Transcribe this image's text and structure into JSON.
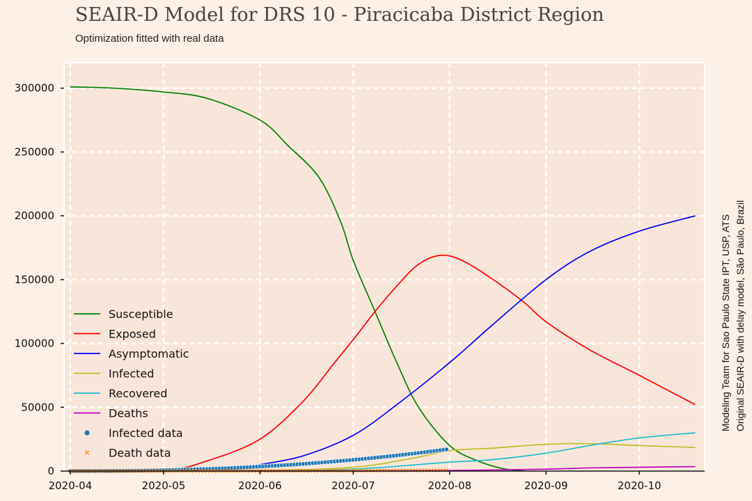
{
  "title": "SEAIR-D Model for DRS 10 - Piracicaba District Region",
  "subtitle": "Optimization fitted with real data",
  "side_note": {
    "line1": "Modeling Team for Sao Paulo State IPT, USP, ATS",
    "line2": "Original SEAIR-D with delay model, São Paulo, Brazil"
  },
  "colors": {
    "background": "#fdf0e6",
    "plot_bg": "#f9e6da",
    "grid": "#ffffff"
  },
  "chart_data": {
    "type": "line",
    "grid": true,
    "legend_position": "center-left",
    "xlim": [
      "2020-03-30",
      "2020-10-22"
    ],
    "ylim": [
      0,
      320000
    ],
    "x_ticks": [
      {
        "date": "2020-04-01",
        "label": "2020-04"
      },
      {
        "date": "2020-05-01",
        "label": "2020-05"
      },
      {
        "date": "2020-06-01",
        "label": "2020-06"
      },
      {
        "date": "2020-07-01",
        "label": "2020-07"
      },
      {
        "date": "2020-08-01",
        "label": "2020-08"
      },
      {
        "date": "2020-09-01",
        "label": "2020-09"
      },
      {
        "date": "2020-10-01",
        "label": "2020-10"
      }
    ],
    "y_ticks": [
      {
        "value": 0,
        "label": "0"
      },
      {
        "value": 50000,
        "label": "50000"
      },
      {
        "value": 100000,
        "label": "100000"
      },
      {
        "value": 150000,
        "label": "150000"
      },
      {
        "value": 200000,
        "label": "200000"
      },
      {
        "value": 250000,
        "label": "250000"
      },
      {
        "value": 300000,
        "label": "300000"
      }
    ],
    "series": [
      {
        "name": "Susceptible",
        "kind": "line",
        "color": "#008000",
        "x": [
          "2020-04-01",
          "2020-04-15",
          "2020-05-01",
          "2020-05-15",
          "2020-06-01",
          "2020-06-10",
          "2020-06-20",
          "2020-06-27",
          "2020-07-01",
          "2020-07-08",
          "2020-07-15",
          "2020-07-22",
          "2020-08-01",
          "2020-08-10",
          "2020-08-18",
          "2020-08-25"
        ],
        "y": [
          301000,
          300000,
          297000,
          292000,
          275000,
          255000,
          230000,
          195000,
          165000,
          125000,
          85000,
          50000,
          20000,
          8000,
          2000,
          0
        ]
      },
      {
        "name": "Exposed",
        "kind": "line",
        "color": "#ff0000",
        "x": [
          "2020-04-01",
          "2020-05-01",
          "2020-05-15",
          "2020-06-01",
          "2020-06-15",
          "2020-06-25",
          "2020-07-01",
          "2020-07-08",
          "2020-07-15",
          "2020-07-22",
          "2020-07-29",
          "2020-08-05",
          "2020-08-15",
          "2020-08-25",
          "2020-09-01",
          "2020-09-15",
          "2020-10-01",
          "2020-10-19"
        ],
        "y": [
          0,
          500,
          8000,
          25000,
          55000,
          85000,
          103000,
          125000,
          145000,
          162000,
          169000,
          165000,
          150000,
          132000,
          117000,
          95000,
          75000,
          52000
        ]
      },
      {
        "name": "Asymptomatic",
        "kind": "line",
        "color": "#0000ff",
        "x": [
          "2020-04-01",
          "2020-05-01",
          "2020-05-25",
          "2020-06-01",
          "2020-06-15",
          "2020-07-01",
          "2020-07-15",
          "2020-08-01",
          "2020-08-15",
          "2020-09-01",
          "2020-09-15",
          "2020-10-01",
          "2020-10-19"
        ],
        "y": [
          0,
          500,
          2000,
          5000,
          12000,
          28000,
          52000,
          85000,
          115000,
          150000,
          172000,
          188000,
          200000
        ]
      },
      {
        "name": "Infected",
        "kind": "line",
        "color": "#bcbd22",
        "x": [
          "2020-04-01",
          "2020-06-01",
          "2020-07-01",
          "2020-07-20",
          "2020-08-01",
          "2020-08-15",
          "2020-09-01",
          "2020-09-15",
          "2020-10-01",
          "2020-10-19"
        ],
        "y": [
          0,
          500,
          3000,
          10000,
          16000,
          18000,
          21000,
          21500,
          20000,
          18500
        ]
      },
      {
        "name": "Recovered",
        "kind": "line",
        "color": "#17becf",
        "x": [
          "2020-04-01",
          "2020-06-01",
          "2020-07-01",
          "2020-08-01",
          "2020-08-15",
          "2020-09-01",
          "2020-09-15",
          "2020-10-01",
          "2020-10-19"
        ],
        "y": [
          0,
          300,
          1500,
          7000,
          9000,
          14000,
          20000,
          26000,
          30000
        ]
      },
      {
        "name": "Deaths",
        "kind": "line",
        "color": "#c000c0",
        "x": [
          "2020-04-01",
          "2020-07-01",
          "2020-08-01",
          "2020-09-01",
          "2020-09-15",
          "2020-10-01",
          "2020-10-19"
        ],
        "y": [
          0,
          100,
          500,
          1500,
          2500,
          3000,
          3500
        ]
      },
      {
        "name": "Infected data",
        "kind": "scatter",
        "color": "#1f77b4",
        "x_start": "2020-04-01",
        "x_end": "2020-07-31",
        "y_start": 0,
        "y_end": 17000,
        "points": 122
      },
      {
        "name": "Death data",
        "kind": "scatter-x",
        "color": "#ff7f0e",
        "x_start": "2020-04-01",
        "x_end": "2020-07-31",
        "y_start": 0,
        "y_end": 600,
        "points": 122
      }
    ]
  }
}
